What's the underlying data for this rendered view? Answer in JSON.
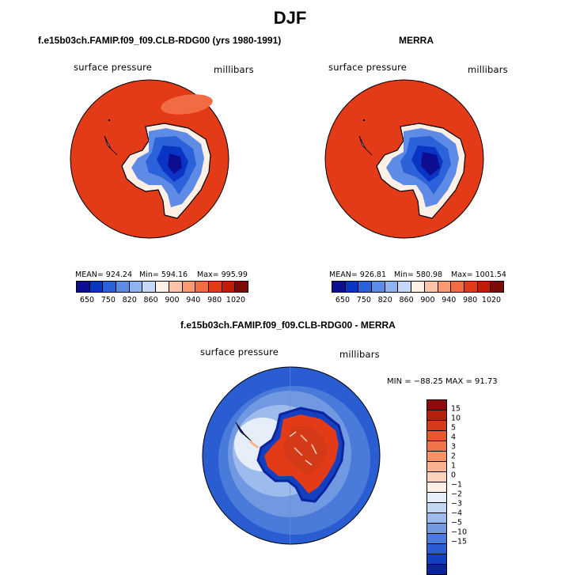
{
  "title": "DJF",
  "panels": [
    {
      "title": "f.e15b03ch.FAMIP.f09_f09.CLB-RDG00 (yrs 1980-1991)",
      "variable": "surface pressure",
      "units": "millibars",
      "mean_label": "MEAN= 924.24",
      "min_label": "Min= 594.16",
      "max_label": "Max= 995.99"
    },
    {
      "title": "MERRA",
      "variable": "surface pressure",
      "units": "millibars",
      "mean_label": "MEAN= 926.81",
      "min_label": "Min= 580.98",
      "max_label": "Max= 1001.54"
    }
  ],
  "diff_panel": {
    "title": "f.e15b03ch.FAMIP.f09_f09.CLB-RDG00 - MERRA",
    "variable": "surface pressure",
    "units": "millibars",
    "minmax_label": "MIN = −88.25  MAX =  91.73"
  },
  "chart_data": [
    {
      "type": "heatmap",
      "projection": "south-polar-stereographic",
      "title": "f.e15b03ch.FAMIP.f09_f09.CLB-RDG00 (yrs 1980-1991)",
      "field": "surface pressure",
      "units": "millibars",
      "mean": 924.24,
      "min": 594.16,
      "max": 995.99,
      "colorbar_ticks": [
        "650",
        "750",
        "820",
        "860",
        "900",
        "940",
        "980",
        "1020"
      ],
      "colors": [
        "#0d0d8f",
        "#0a35c4",
        "#2b62d9",
        "#5d8be6",
        "#8fb3f0",
        "#c5d9f7",
        "#fff0e6",
        "#fcc5aa",
        "#f99a72",
        "#f26b43",
        "#e33b17",
        "#c21b08",
        "#7a0b06"
      ]
    },
    {
      "type": "heatmap",
      "projection": "south-polar-stereographic",
      "title": "MERRA",
      "field": "surface pressure",
      "units": "millibars",
      "mean": 926.81,
      "min": 580.98,
      "max": 1001.54,
      "colorbar_ticks": [
        "650",
        "750",
        "820",
        "860",
        "900",
        "940",
        "980",
        "1020"
      ],
      "colors": [
        "#0d0d8f",
        "#0a35c4",
        "#2b62d9",
        "#5d8be6",
        "#8fb3f0",
        "#c5d9f7",
        "#fff0e6",
        "#fcc5aa",
        "#f99a72",
        "#f26b43",
        "#e33b17",
        "#c21b08",
        "#7a0b06"
      ]
    },
    {
      "type": "heatmap",
      "projection": "south-polar-stereographic",
      "title": "f.e15b03ch.FAMIP.f09_f09.CLB-RDG00 - MERRA",
      "field": "surface pressure difference",
      "units": "millibars",
      "min": -88.25,
      "max": 91.73,
      "colorbar_ticks": [
        "15",
        "10",
        "5",
        "4",
        "3",
        "2",
        "1",
        "0",
        "−1",
        "−2",
        "−3",
        "−4",
        "−5",
        "−10",
        "−15"
      ],
      "colors": [
        "#8b0c08",
        "#b5200c",
        "#d43a18",
        "#e6572d",
        "#ef7548",
        "#f69468",
        "#fab28e",
        "#fcd3ba",
        "#fdefe6",
        "#e6eef9",
        "#c3d6f3",
        "#9dbbec",
        "#7099e2",
        "#4a7bda",
        "#2a5dd2",
        "#1440c0",
        "#0a24a0"
      ]
    }
  ]
}
